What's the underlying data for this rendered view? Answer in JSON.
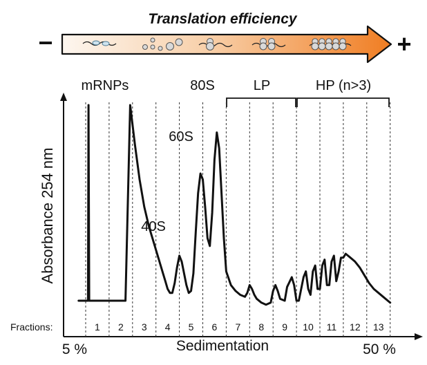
{
  "chart_data": {
    "type": "line",
    "title": "Translation efficiency",
    "scale_minus": "−",
    "scale_plus": "+",
    "ylabel": "Absorbance 254 nm",
    "xlabel": "Sedimentation",
    "gradient_start": "5 %",
    "gradient_end": "50 %",
    "fractions_label": "Fractions:",
    "fractions": [
      "1",
      "2",
      "3",
      "4",
      "5",
      "6",
      "7",
      "8",
      "9",
      "10",
      "11",
      "12",
      "13"
    ],
    "regions": [
      {
        "label": "mRNPs",
        "fractions": [
          1,
          2
        ]
      },
      {
        "label": "80S",
        "fractions": [
          5,
          6
        ]
      },
      {
        "label": "LP",
        "fractions": [
          7,
          9
        ]
      },
      {
        "label": "HP (n>3)",
        "fractions": [
          10,
          13
        ]
      }
    ],
    "peaks": [
      {
        "label": "40S",
        "fraction": 3.5,
        "absorbance": 0.23
      },
      {
        "label": "60S",
        "fraction": 4.7,
        "absorbance": 0.65
      },
      {
        "label": "80S",
        "fraction": 5.4,
        "absorbance": 0.86
      }
    ],
    "xlim": [
      -0.3,
      13.0
    ],
    "ylim": [
      0,
      1.0
    ],
    "x": [
      -0.3,
      0.1,
      0.12,
      0.15,
      0.6,
      0.9,
      1.1,
      1.3,
      1.5,
      1.7,
      1.9,
      2.1,
      2.3,
      2.5,
      2.7,
      2.9,
      3.0,
      3.1,
      3.2,
      3.3,
      3.4,
      3.5,
      3.6,
      3.7,
      3.8,
      3.9,
      4.0,
      4.1,
      4.2,
      4.3,
      4.4,
      4.5,
      4.6,
      4.7,
      4.8,
      4.9,
      5.0,
      5.1,
      5.2,
      5.3,
      5.4,
      5.5,
      5.6,
      5.7,
      5.8,
      5.9,
      6.0,
      6.2,
      6.4,
      6.6,
      6.8,
      6.9,
      7.0,
      7.1,
      7.2,
      7.3,
      7.5,
      7.7,
      7.9,
      8.0,
      8.1,
      8.2,
      8.3,
      8.5,
      8.6,
      8.8,
      8.9,
      9.0,
      9.1,
      9.3,
      9.4,
      9.5,
      9.6,
      9.7,
      9.8,
      9.9,
      10.0,
      10.1,
      10.2,
      10.3,
      10.4,
      10.5,
      10.6,
      10.7,
      10.8,
      10.9,
      11.0,
      11.1,
      11.2,
      11.3,
      11.5,
      11.7,
      11.9,
      12.1,
      12.3,
      12.5,
      12.7,
      12.9,
      13.0
    ],
    "y": [
      0,
      0,
      1.0,
      0,
      0,
      0,
      0,
      0,
      0,
      0,
      1.0,
      0.8,
      0.62,
      0.48,
      0.38,
      0.3,
      0.26,
      0.22,
      0.18,
      0.14,
      0.1,
      0.06,
      0.04,
      0.04,
      0.09,
      0.17,
      0.23,
      0.2,
      0.14,
      0.08,
      0.04,
      0.05,
      0.14,
      0.35,
      0.55,
      0.65,
      0.62,
      0.48,
      0.32,
      0.28,
      0.45,
      0.72,
      0.86,
      0.78,
      0.55,
      0.32,
      0.15,
      0.08,
      0.05,
      0.03,
      0.02,
      0.04,
      0.08,
      0.06,
      0.03,
      0.01,
      -0.01,
      -0.02,
      -0.01,
      0.05,
      0.08,
      0.05,
      0.01,
      0.0,
      0.07,
      0.12,
      0.08,
      0.0,
      0.0,
      0.12,
      0.15,
      0.06,
      0.03,
      0.15,
      0.18,
      0.06,
      0.06,
      0.18,
      0.21,
      0.08,
      0.08,
      0.2,
      0.23,
      0.1,
      0.15,
      0.22,
      0.22,
      0.24,
      0.23,
      0.22,
      0.2,
      0.17,
      0.13,
      0.09,
      0.06,
      0.04,
      0.02,
      0.0,
      -0.01
    ]
  }
}
